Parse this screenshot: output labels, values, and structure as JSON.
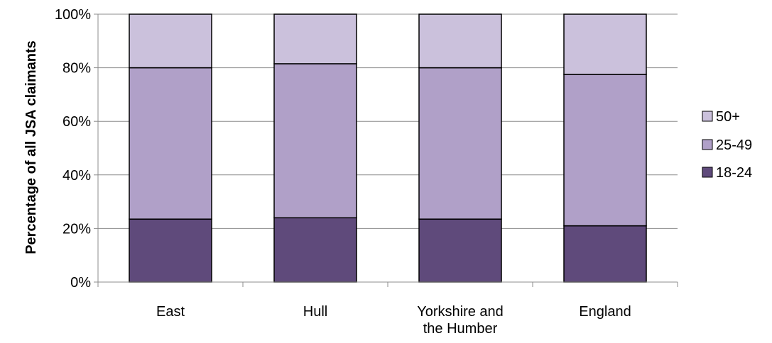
{
  "chart_data": {
    "type": "bar",
    "stacked": true,
    "normalized_percent": true,
    "categories": [
      [
        "East"
      ],
      [
        "Hull"
      ],
      [
        "Yorkshire and",
        "the Humber"
      ],
      [
        "England"
      ]
    ],
    "series": [
      {
        "name": "18-24",
        "values": [
          23.5,
          24,
          23.5,
          21
        ],
        "color": "#5f4a7b"
      },
      {
        "name": "25-49",
        "values": [
          56.5,
          57.5,
          56.5,
          56.5
        ],
        "color": "#b0a0c8"
      },
      {
        "name": "50+",
        "values": [
          20,
          18.5,
          20,
          22.5
        ],
        "color": "#cbc1dc"
      }
    ],
    "ylabel": "Percentage of all JSA claimants",
    "xlabel": "",
    "ylim": [
      0,
      100
    ],
    "yticks": [
      "0%",
      "20%",
      "40%",
      "60%",
      "80%",
      "100%"
    ],
    "grid": true,
    "legend_position": "right",
    "legend_order": [
      "50+",
      "25-49",
      "18-24"
    ]
  }
}
